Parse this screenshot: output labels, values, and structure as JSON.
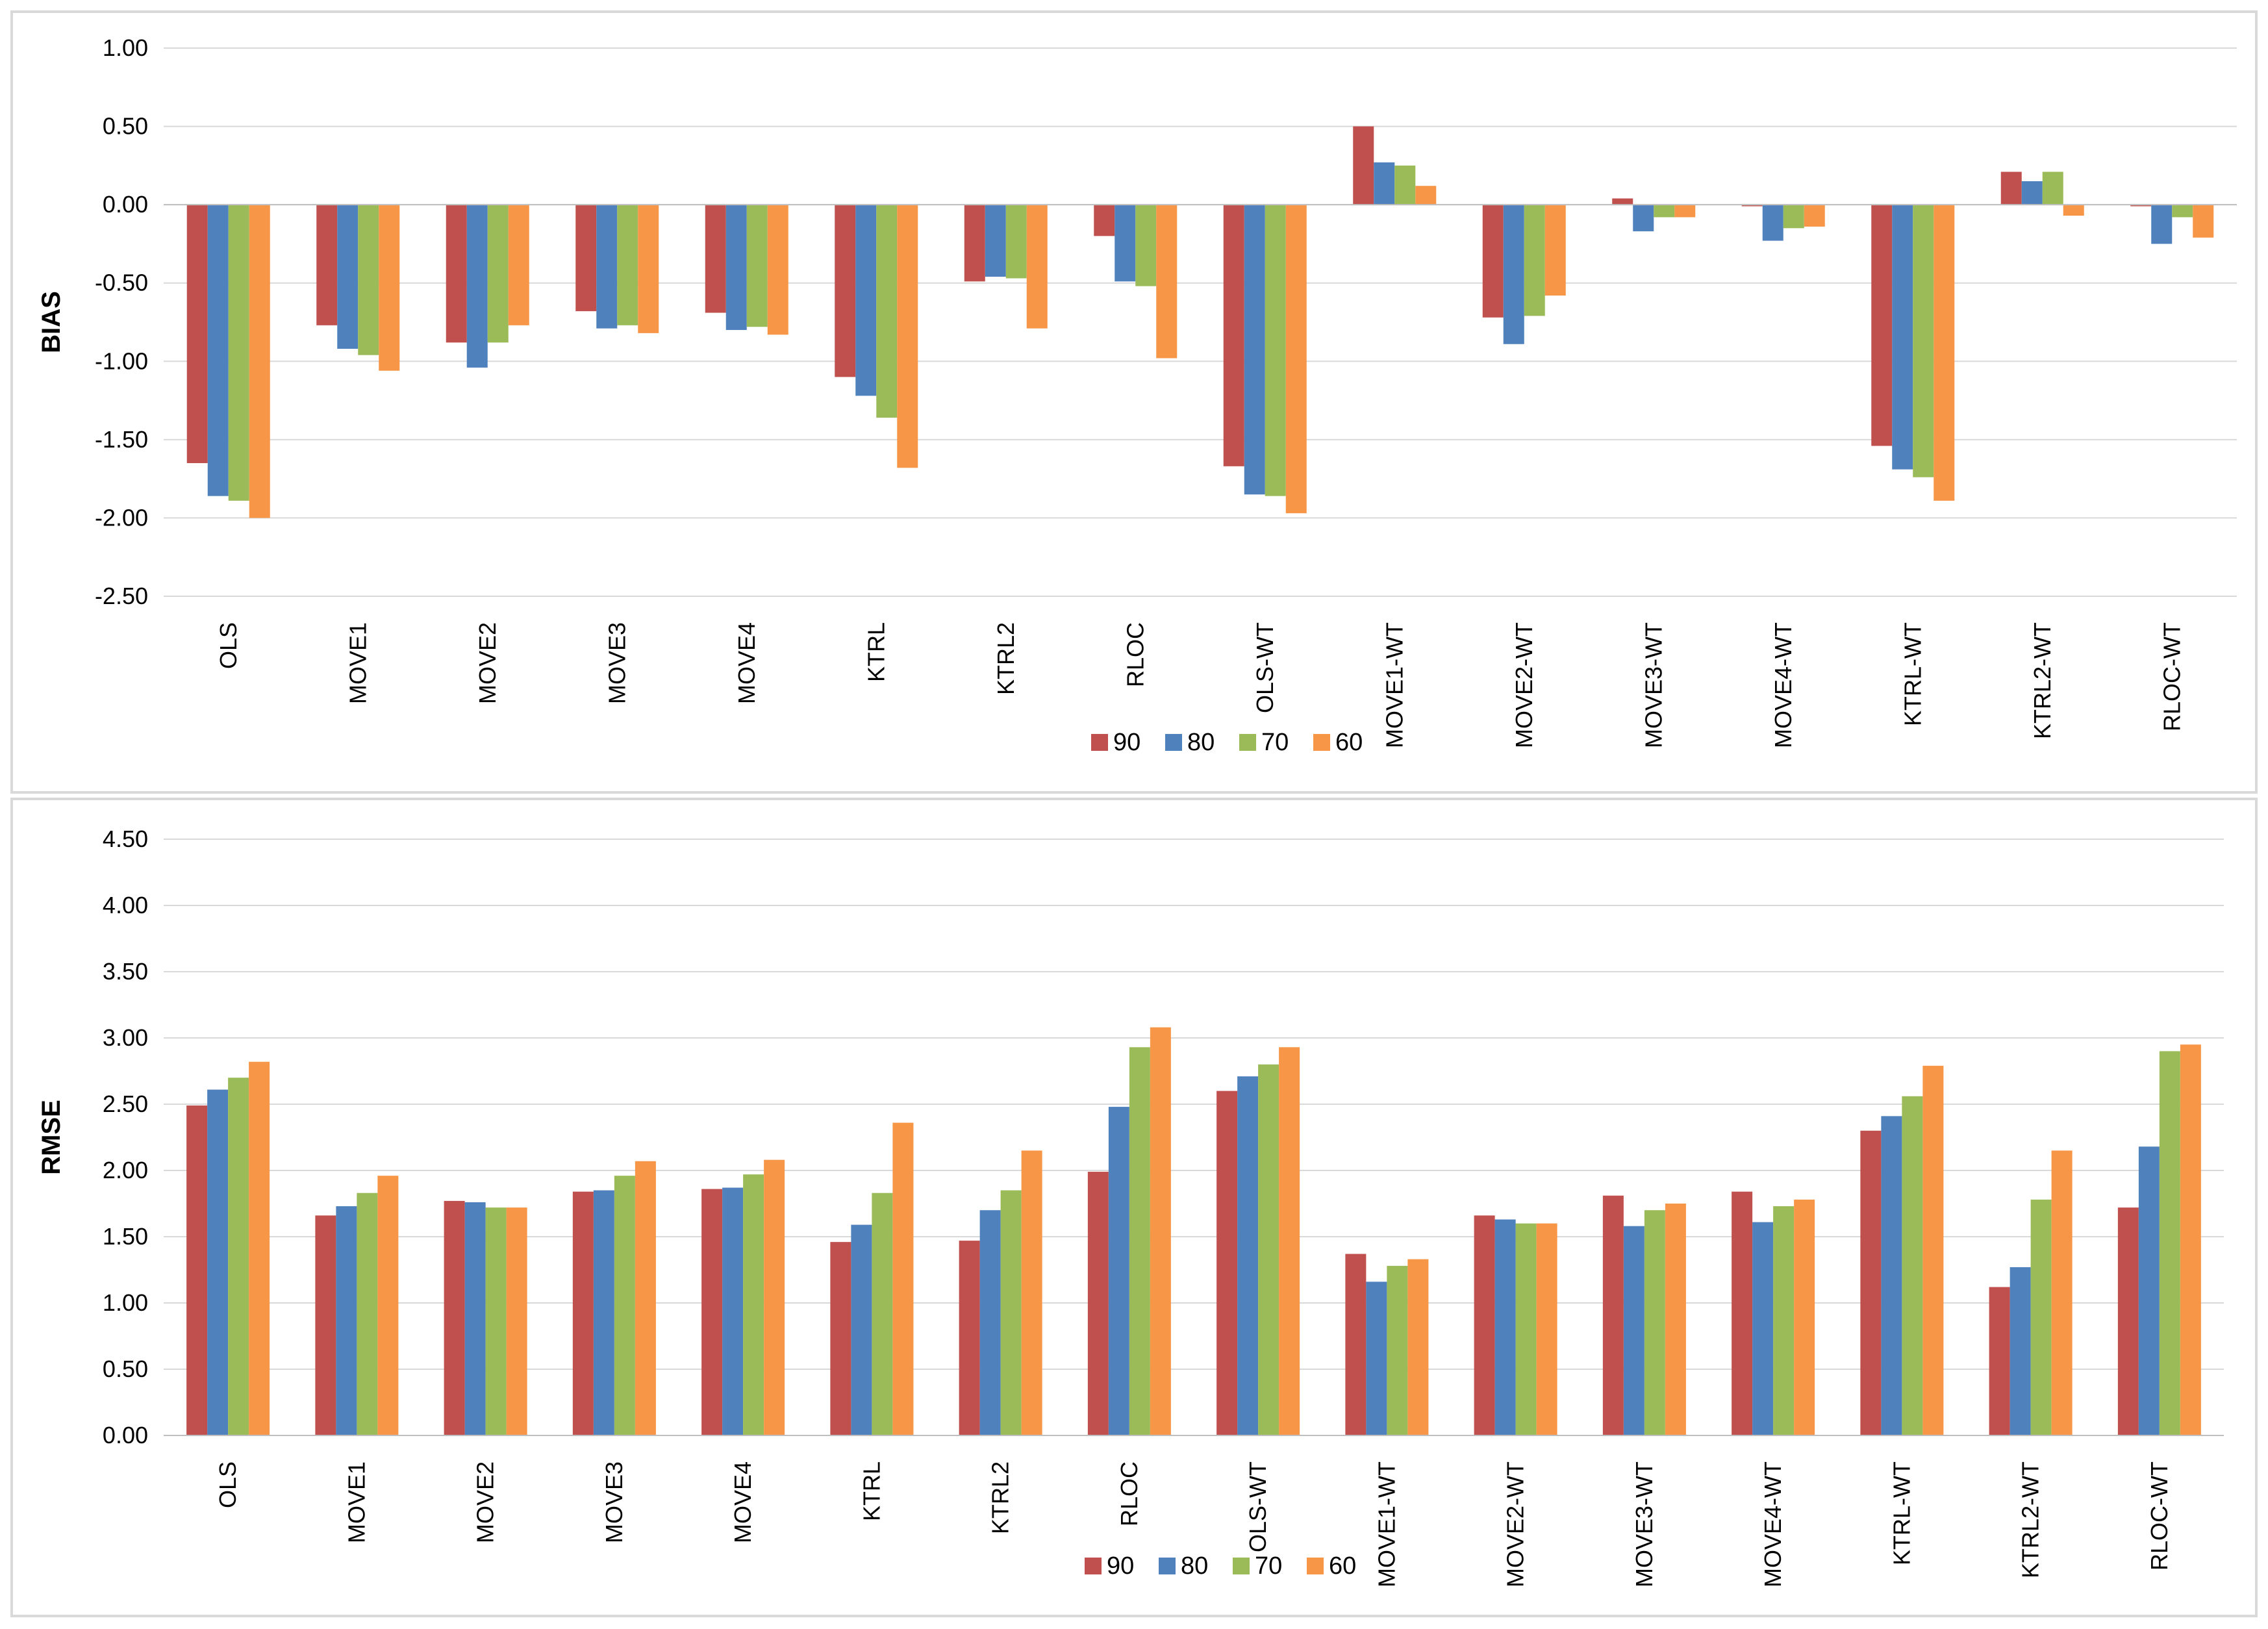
{
  "chart_data": [
    {
      "type": "bar",
      "id": "bias",
      "title": "",
      "xlabel": "",
      "ylabel": "BIAS",
      "ylim": [
        -2.5,
        1.0
      ],
      "yticks": [
        1.0,
        0.5,
        0.0,
        -0.5,
        -1.0,
        -1.5,
        -2.0,
        -2.5
      ],
      "grid": true,
      "legend": "bottom-center",
      "categories": [
        "OLS",
        "MOVE1",
        "MOVE2",
        "MOVE3",
        "MOVE4",
        "KTRL",
        "KTRL2",
        "RLOC",
        "OLS-WT",
        "MOVE1-WT",
        "MOVE2-WT",
        "MOVE3-WT",
        "MOVE4-WT",
        "KTRL-WT",
        "KTRL2-WT",
        "RLOC-WT"
      ],
      "series": [
        {
          "name": "90",
          "color": "#c0504d",
          "values": [
            -1.65,
            -0.77,
            -0.88,
            -0.68,
            -0.69,
            -1.1,
            -0.49,
            -0.2,
            -1.67,
            0.5,
            -0.72,
            0.04,
            -0.01,
            -1.54,
            0.21,
            -0.01
          ]
        },
        {
          "name": "80",
          "color": "#4f81bd",
          "values": [
            -1.86,
            -0.92,
            -1.04,
            -0.79,
            -0.8,
            -1.22,
            -0.46,
            -0.49,
            -1.85,
            0.27,
            -0.89,
            -0.17,
            -0.23,
            -1.69,
            0.15,
            -0.25
          ]
        },
        {
          "name": "70",
          "color": "#9bbb59",
          "values": [
            -1.89,
            -0.96,
            -0.88,
            -0.77,
            -0.78,
            -1.36,
            -0.47,
            -0.52,
            -1.86,
            0.25,
            -0.71,
            -0.08,
            -0.15,
            -1.74,
            0.21,
            -0.08
          ]
        },
        {
          "name": "60",
          "color": "#f79646",
          "values": [
            -2.0,
            -1.06,
            -0.77,
            -0.82,
            -0.83,
            -1.68,
            -0.79,
            -0.98,
            -1.97,
            0.12,
            -0.58,
            -0.08,
            -0.14,
            -1.89,
            -0.07,
            -0.21
          ]
        }
      ]
    },
    {
      "type": "bar",
      "id": "rmse",
      "title": "",
      "xlabel": "",
      "ylabel": "RMSE",
      "ylim": [
        0.0,
        4.5
      ],
      "yticks": [
        4.5,
        4.0,
        3.5,
        3.0,
        2.5,
        2.0,
        1.5,
        1.0,
        0.5,
        0.0
      ],
      "grid": true,
      "legend": "bottom-center",
      "categories": [
        "OLS",
        "MOVE1",
        "MOVE2",
        "MOVE3",
        "MOVE4",
        "KTRL",
        "KTRL2",
        "RLOC",
        "OLS-WT",
        "MOVE1-WT",
        "MOVE2-WT",
        "MOVE3-WT",
        "MOVE4-WT",
        "KTRL-WT",
        "KTRL2-WT",
        "RLOC-WT"
      ],
      "series": [
        {
          "name": "90",
          "color": "#c0504d",
          "values": [
            2.49,
            1.66,
            1.77,
            1.84,
            1.86,
            1.46,
            1.47,
            1.99,
            2.6,
            1.37,
            1.66,
            1.81,
            1.84,
            2.3,
            1.12,
            1.72
          ]
        },
        {
          "name": "80",
          "color": "#4f81bd",
          "values": [
            2.61,
            1.73,
            1.76,
            1.85,
            1.87,
            1.59,
            1.7,
            2.48,
            2.71,
            1.16,
            1.63,
            1.58,
            1.61,
            2.41,
            1.27,
            2.18
          ]
        },
        {
          "name": "70",
          "color": "#9bbb59",
          "values": [
            2.7,
            1.83,
            1.72,
            1.96,
            1.97,
            1.83,
            1.85,
            2.93,
            2.8,
            1.28,
            1.6,
            1.7,
            1.73,
            2.56,
            1.78,
            2.9
          ]
        },
        {
          "name": "60",
          "color": "#f79646",
          "values": [
            2.82,
            1.96,
            1.72,
            2.07,
            2.08,
            2.36,
            2.15,
            3.08,
            2.93,
            1.33,
            1.6,
            1.75,
            1.78,
            2.79,
            2.15,
            2.95
          ]
        }
      ]
    }
  ]
}
